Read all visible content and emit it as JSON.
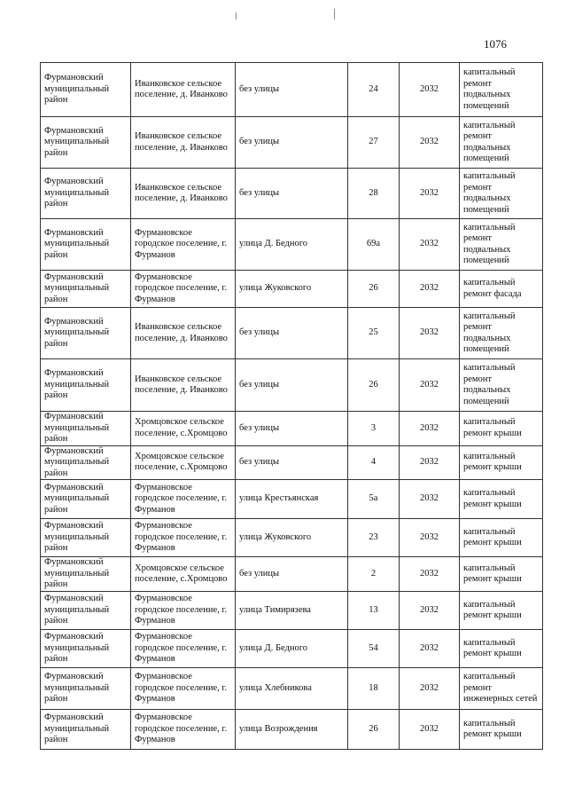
{
  "page_number": "1076",
  "rows": [
    [
      "Фурмановский муниципальный район",
      "Иванковское сельское поселение, д. Иванково",
      "без улицы",
      "24",
      "2032",
      "капитальный ремонт подвальных помещений"
    ],
    [
      "Фурмановский муниципальный район",
      "Иванковское сельское поселение, д. Иванково",
      "без улицы",
      "27",
      "2032",
      "капитальный ремонт подвальных помещений"
    ],
    [
      "Фурмановский муниципальный район",
      "Иванковское сельское поселение, д. Иванково",
      "без улицы",
      "28",
      "2032",
      "капитальный ремонт подвальных помещений"
    ],
    [
      "Фурмановский муниципальный район",
      "Фурмановское городское поселение, г. Фурманов",
      "улица Д. Бедного",
      "69а",
      "2032",
      "капитальный ремонт подвальных помещений"
    ],
    [
      "Фурмановский муниципальный район",
      "Фурмановское городское поселение, г. Фурманов",
      "улица  Жуковского",
      "26",
      "2032",
      "капитальный ремонт фасада"
    ],
    [
      "Фурмановский муниципальный район",
      "Иванковское сельское поселение, д. Иванково",
      "без улицы",
      "25",
      "2032",
      "капитальный ремонт подвальных помещений"
    ],
    [
      "Фурмановский муниципальный район",
      "Иванковское сельское поселение, д. Иванково",
      "без улицы",
      "26",
      "2032",
      "капитальный ремонт подвальных помещений"
    ],
    [
      "Фурмановский муниципальный район",
      "Хромцовское сельское поселение, с.Хромцово",
      "без улицы",
      "3",
      "2032",
      "капитальный ремонт крыши"
    ],
    [
      "Фурмановский муниципальный район",
      "Хромцовское сельское поселение, с.Хромцово",
      "без улицы",
      "4",
      "2032",
      "капитальный ремонт крыши"
    ],
    [
      "Фурмановский муниципальный район",
      "Фурмановское городское поселение, г. Фурманов",
      "улица Крестьянская",
      "5а",
      "2032",
      "капитальный ремонт крыши"
    ],
    [
      "Фурмановский муниципальный район",
      "Фурмановское городское поселение, г. Фурманов",
      "улица  Жуковского",
      "23",
      "2032",
      "капитальный ремонт крыши"
    ],
    [
      "Фурмановский муниципальный район",
      "Хромцовское сельское поселение, с.Хромцово",
      "без улицы",
      "2",
      "2032",
      "капитальный ремонт крыши"
    ],
    [
      "Фурмановский муниципальный район",
      "Фурмановское городское поселение, г. Фурманов",
      "улица Тимирязева",
      "13",
      "2032",
      "капитальный ремонт крыши"
    ],
    [
      "Фурмановский муниципальный район",
      "Фурмановское городское поселение, г. Фурманов",
      "улица Д. Бедного",
      "54",
      "2032",
      "капитальный ремонт крыши"
    ],
    [
      "Фурмановский муниципальный район",
      "Фурмановское городское поселение, г. Фурманов",
      "улица Хлебникова",
      "18",
      "2032",
      "капитальный ремонт инженерных сетей"
    ],
    [
      "Фурмановский муниципальный район",
      "Фурмановское городское поселение, г. Фурманов",
      "улица Возрождения",
      "26",
      "2032",
      "капитальный ремонт крыши"
    ]
  ]
}
